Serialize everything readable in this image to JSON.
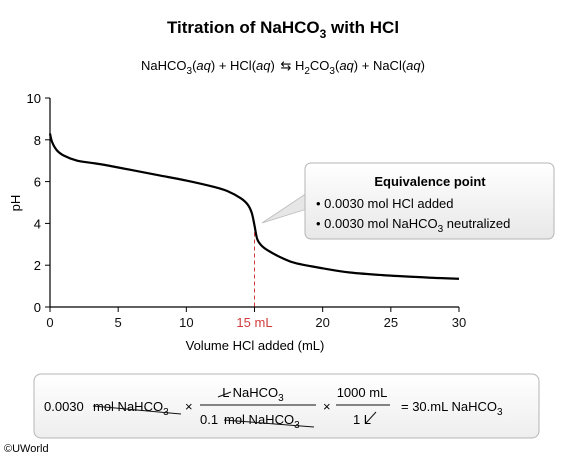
{
  "chart_data": {
    "type": "line",
    "title": "Titration of NaHCO3 with HCl",
    "subtitle": "NaHCO3(aq) + HCl(aq) ⇆ H2CO3(aq) + NaCl(aq)",
    "xlabel": "Volume HCl added (mL)",
    "ylabel": "pH",
    "xlim": [
      0,
      30
    ],
    "ylim": [
      0,
      10
    ],
    "x_ticks": [
      0,
      5,
      10,
      15,
      20,
      25,
      30
    ],
    "x_tick_labels": [
      "0",
      "5",
      "10",
      "15 mL",
      "20",
      "25",
      "30"
    ],
    "y_ticks": [
      0,
      2,
      4,
      6,
      8,
      10
    ],
    "grid": false,
    "series": [
      {
        "x": [
          0,
          0.15,
          0.5,
          1,
          2,
          3,
          4,
          6,
          8,
          10,
          12,
          13,
          14,
          14.5,
          14.8,
          15,
          15.2,
          15.5,
          16,
          17,
          18,
          20,
          22,
          25,
          28,
          30
        ],
        "y": [
          8.3,
          7.9,
          7.5,
          7.25,
          7.0,
          6.9,
          6.8,
          6.55,
          6.3,
          6.05,
          5.75,
          5.55,
          5.2,
          4.9,
          4.5,
          3.9,
          3.25,
          2.95,
          2.7,
          2.35,
          2.1,
          1.85,
          1.65,
          1.5,
          1.4,
          1.35
        ],
        "color": "#000000"
      }
    ],
    "annotations": {
      "equivalence_x": 15,
      "equivalence_line_color": "#d23c3c",
      "callout_title": "Equivalence point",
      "callout_items": [
        "• 0.0030 mol HCl added",
        "• 0.0030 mol NaHCO3 neutralized"
      ]
    }
  },
  "calculation": {
    "start": "0.0030",
    "unit1": "mol NaHCO3",
    "times1": "×",
    "frac1_num": "L NaHCO3",
    "frac1_den_value": "0.1",
    "frac1_den_unit": "mol NaHCO3",
    "times2": "×",
    "frac2_num": "1000 mL",
    "frac2_den": "1 L",
    "result": "= 30.mL NaHCO3"
  },
  "credit": "©UWorld"
}
